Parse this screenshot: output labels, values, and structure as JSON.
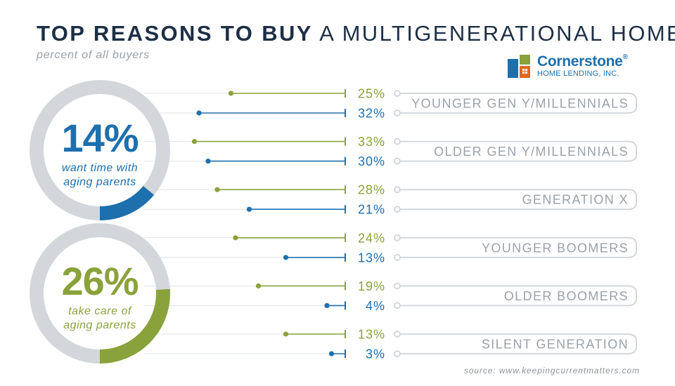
{
  "title": {
    "bold": "TOP REASONS TO BUY",
    "light": "A MULTIGENERATIONAL HOME"
  },
  "subtitle": "percent of all buyers",
  "source": "source: www.keepingcurrentmatters.com",
  "logo": {
    "name": "Cornerstone",
    "trademark": "®",
    "tagline": "HOME LENDING, INC."
  },
  "colors": {
    "green": "#8aa23b",
    "blue": "#1e6fae",
    "gray": "#d3d7dc",
    "label_gray": "#9ba2a8",
    "navy": "#1d2f45"
  },
  "chart_data": {
    "type": "dot-line",
    "series": [
      {
        "name": "want time with aging parents",
        "summary": "14%",
        "color": "#1e6fae"
      },
      {
        "name": "take care of aging parents",
        "summary": "26%",
        "color": "#8aa23b"
      }
    ],
    "donuts": [
      {
        "percent_label": "14%",
        "value": 14,
        "caption_line1": "want time with",
        "caption_line2": "aging parents",
        "color": "#1e6fae"
      },
      {
        "percent_label": "26%",
        "value": 26,
        "caption_line1": "take care of",
        "caption_line2": "aging parents",
        "color": "#8aa23b"
      }
    ],
    "groups": [
      {
        "label": "YOUNGER GEN Y/MILLENNIALS",
        "green": 25,
        "green_label": "25%",
        "blue": 32,
        "blue_label": "32%"
      },
      {
        "label": "OLDER GEN Y/MILLENNIALS",
        "green": 33,
        "green_label": "33%",
        "blue": 30,
        "blue_label": "30%"
      },
      {
        "label": "GENERATION X",
        "green": 28,
        "green_label": "28%",
        "blue": 21,
        "blue_label": "21%"
      },
      {
        "label": "YOUNGER BOOMERS",
        "green": 24,
        "green_label": "24%",
        "blue": 13,
        "blue_label": "13%"
      },
      {
        "label": "OLDER BOOMERS",
        "green": 19,
        "green_label": "19%",
        "blue": 4,
        "blue_label": "4%"
      },
      {
        "label": "SILENT GENERATION",
        "green": 13,
        "green_label": "13%",
        "blue": 3,
        "blue_label": "3%"
      }
    ]
  }
}
